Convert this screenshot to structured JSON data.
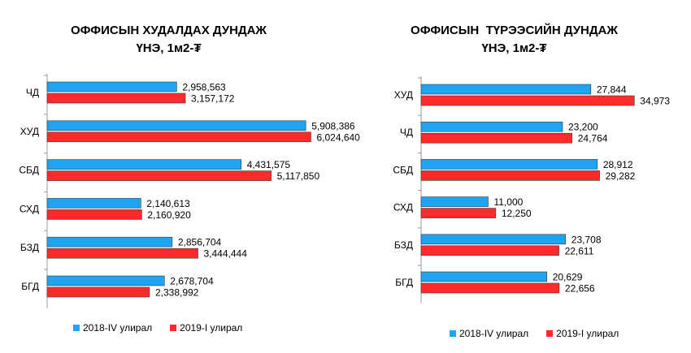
{
  "colors": {
    "series1": "#1ea4f0",
    "series2": "#ff2a2a",
    "bar_stroke": "#3a3a3a"
  },
  "chart_data": [
    {
      "type": "bar",
      "orientation": "horizontal",
      "title_line1": "ОФФИСЫН ХУДАЛДАХ ДУНДАЖ",
      "title_line2": "ҮНЭ, 1м2-₮",
      "categories": [
        "ЧД",
        "ХУД",
        "СБД",
        "СХД",
        "БЗД",
        "БГД"
      ],
      "series": [
        {
          "name": "2018-IV улирал",
          "values": [
            2958563,
            5908386,
            4431575,
            2140613,
            2856704,
            2678704
          ],
          "labels": [
            "2,958,563",
            "5,908,386",
            "4,431,575",
            "2,140,613",
            "2,856,704",
            "2,678,704"
          ]
        },
        {
          "name": "2019-I улирал",
          "values": [
            3157172,
            6024640,
            5117850,
            2160920,
            3444444,
            2338992
          ],
          "labels": [
            "3,157,172",
            "6,024,640",
            "5,117,850",
            "2,160,920",
            "3,444,444",
            "2,338,992"
          ]
        }
      ],
      "xlim": [
        0,
        7000000
      ],
      "grid": false,
      "legend": "bottom"
    },
    {
      "type": "bar",
      "orientation": "horizontal",
      "title_line1": "ОФФИСЫН  ТҮРЭЭСИЙН ДУНДАЖ",
      "title_line2": "ҮНЭ, 1м2-₮",
      "categories": [
        "ХУД",
        "ЧД",
        "СБД",
        "СХД",
        "БЗД",
        "БГД"
      ],
      "series": [
        {
          "name": "2018-IV улирал",
          "values": [
            27844,
            23200,
            28912,
            11000,
            23708,
            20629
          ],
          "labels": [
            "27,844",
            "23,200",
            "28,912",
            "11,000",
            "23,708",
            "20,629"
          ]
        },
        {
          "name": "2019-I улирал",
          "values": [
            34973,
            24764,
            29282,
            12250,
            22611,
            22656
          ],
          "labels": [
            "34,973",
            "24,764",
            "29,282",
            "12,250",
            "22,611",
            "22,656"
          ]
        }
      ],
      "xlim": [
        0,
        40000
      ],
      "grid": false,
      "legend": "bottom"
    }
  ]
}
